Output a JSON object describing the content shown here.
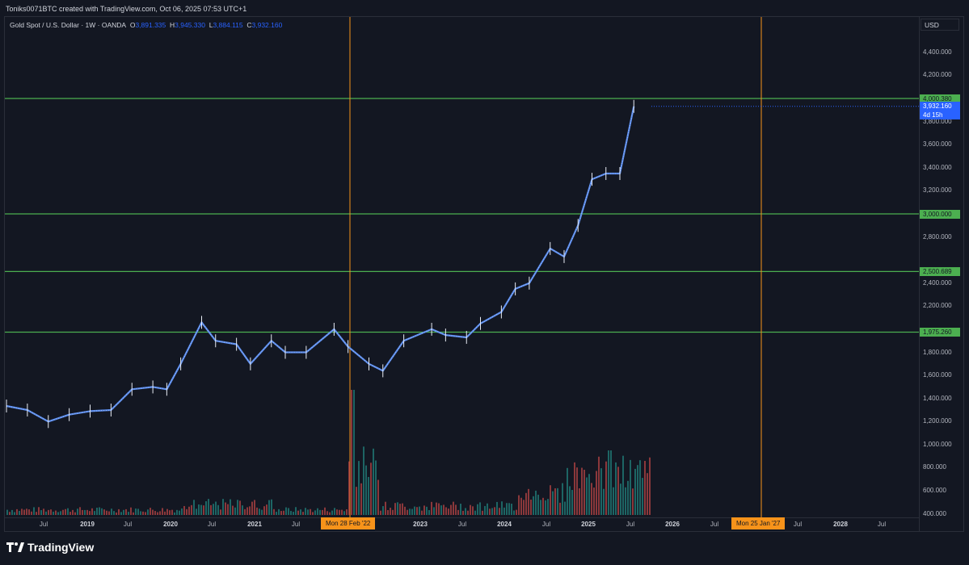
{
  "header": {
    "attribution": "Toniks0071BTC created with TradingView.com, Oct 06, 2025 07:53 UTC+1"
  },
  "legend": {
    "symbol": "Gold Spot / U.S. Dollar · 1W · OANDA",
    "open_label": "O",
    "open": "3,891.335",
    "high_label": "H",
    "high": "3,945.330",
    "low_label": "L",
    "low": "3,884.115",
    "close_label": "C",
    "close": "3,932.160"
  },
  "price_axis": {
    "currency": "USD",
    "ticks": [
      "4,400.000",
      "4,200.000",
      "3,800.000",
      "3,600.000",
      "3,400.000",
      "3,200.000",
      "2,800.000",
      "2,400.000",
      "2,200.000",
      "1,800.000",
      "1,600.000",
      "1,400.000",
      "1,200.000",
      "1,000.000",
      "800.000",
      "600.000",
      "400.000"
    ],
    "levels": [
      "4,000.380",
      "3,000.000",
      "2,500.689",
      "1,975.260"
    ],
    "current_price": "3,932.160",
    "countdown": "4d 15h"
  },
  "time_axis": {
    "ticks": [
      "Jul",
      "2019",
      "Jul",
      "2020",
      "Jul",
      "2021",
      "Jul",
      "2023",
      "Jul",
      "2024",
      "Jul",
      "2025",
      "Jul",
      "2026",
      "Jul",
      "Jul",
      "2028",
      "Jul"
    ],
    "marker_left": "Mon 28 Feb '22",
    "marker_right": "Mon 25 Jan '27"
  },
  "colors": {
    "background": "#131722",
    "candle": "#5b8dee",
    "level_line": "#4caf50",
    "vertical_marker": "#f7931a",
    "volume_up": "#26a69a",
    "volume_down": "#ef5350"
  },
  "footer": {
    "brand": "TradingView",
    "logo_icon": "tradingview-logo-icon"
  },
  "chart_data": {
    "type": "line",
    "title": "Gold Spot / U.S. Dollar · 1W · OANDA",
    "xlabel": "",
    "ylabel": "USD",
    "x": [
      "2018-04",
      "2018-07",
      "2018-10",
      "2019-01",
      "2019-04",
      "2019-07",
      "2019-10",
      "2020-01",
      "2020-03",
      "2020-05",
      "2020-08",
      "2020-10",
      "2021-01",
      "2021-03",
      "2021-06",
      "2021-08",
      "2021-11",
      "2022-03",
      "2022-05",
      "2022-08",
      "2022-10",
      "2023-01",
      "2023-05",
      "2023-07",
      "2023-10",
      "2023-12",
      "2024-03",
      "2024-05",
      "2024-07",
      "2024-10",
      "2024-12",
      "2025-02",
      "2025-04",
      "2025-06",
      "2025-08",
      "2025-10"
    ],
    "series": [
      {
        "values": [
          1335,
          1300,
          1200,
          1260,
          1290,
          1300,
          1480,
          1500,
          1480,
          1700,
          2060,
          1900,
          1870,
          1700,
          1900,
          1800,
          1800,
          2000,
          1850,
          1700,
          1640,
          1900,
          2000,
          1950,
          1930,
          2050,
          2150,
          2350,
          2400,
          2700,
          2630,
          2900,
          3300,
          3350,
          3350,
          3932
        ]
      }
    ],
    "ylim": [
      400,
      4500
    ],
    "horizontal_levels": [
      4000.38,
      3000.0,
      2500.689,
      1975.26
    ],
    "grid": false
  }
}
